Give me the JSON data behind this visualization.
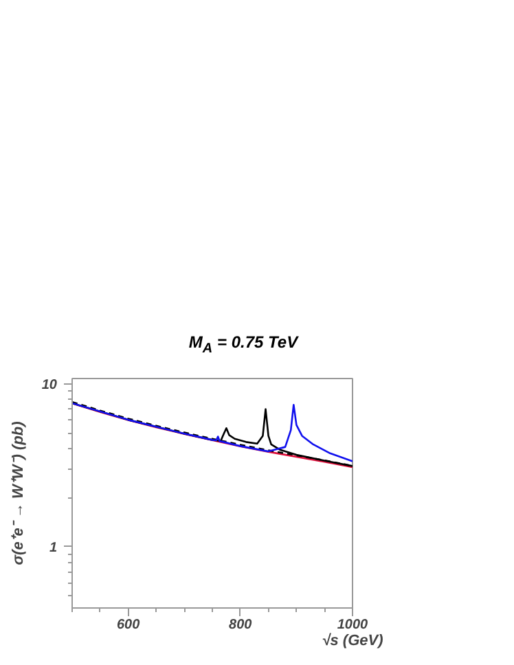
{
  "chart_data": {
    "type": "line",
    "title": "M$_{A}$ = 0.75 TeV",
    "xlabel": "√s (GeV)",
    "ylabel": "σ(e⁺e⁻ → W⁺W⁻) (pb)",
    "log": "y",
    "grid": false,
    "xlim": [
      500,
      1000
    ],
    "xticks": [
      600,
      800,
      1000
    ],
    "ylim": [
      0.42,
      10.8
    ],
    "yticks": [
      1,
      10
    ],
    "series": [
      {
        "color": "#e0103c",
        "line_style": "solid",
        "x": [
          500,
          550,
          600,
          650,
          700,
          750,
          800,
          850,
          900,
          950,
          1000
        ],
        "values": [
          7.6,
          6.72,
          6.0,
          5.42,
          4.93,
          4.51,
          4.14,
          3.83,
          3.57,
          3.32,
          3.08
        ]
      },
      {
        "color": "#000000",
        "line_style": "dashed",
        "x": [
          500,
          550,
          600,
          650,
          700,
          750,
          800,
          850,
          900,
          950,
          1000
        ],
        "values": [
          7.75,
          6.86,
          6.12,
          5.53,
          5.03,
          4.6,
          4.23,
          3.91,
          3.64,
          3.39,
          3.14
        ]
      },
      {
        "color": "#000000",
        "line_style": "solid",
        "x": [
          500,
          600,
          700,
          750,
          765,
          770,
          775,
          780,
          790,
          810,
          830,
          840,
          845,
          850,
          855,
          870,
          900,
          950,
          1000
        ],
        "values": [
          7.62,
          6.02,
          4.95,
          4.53,
          4.47,
          4.9,
          5.35,
          4.85,
          4.6,
          4.4,
          4.3,
          4.8,
          7.0,
          4.8,
          4.25,
          3.95,
          3.67,
          3.38,
          3.13
        ]
      },
      {
        "color": "#1010ee",
        "line_style": "solid",
        "x": [
          500,
          600,
          700,
          750,
          757,
          760,
          763,
          770,
          800,
          850,
          880,
          890,
          895,
          900,
          910,
          930,
          960,
          1000
        ],
        "values": [
          7.62,
          6.02,
          4.95,
          4.53,
          4.5,
          4.75,
          4.45,
          4.4,
          4.15,
          3.85,
          4.1,
          5.2,
          7.45,
          5.6,
          4.8,
          4.25,
          3.75,
          3.35
        ]
      }
    ]
  }
}
